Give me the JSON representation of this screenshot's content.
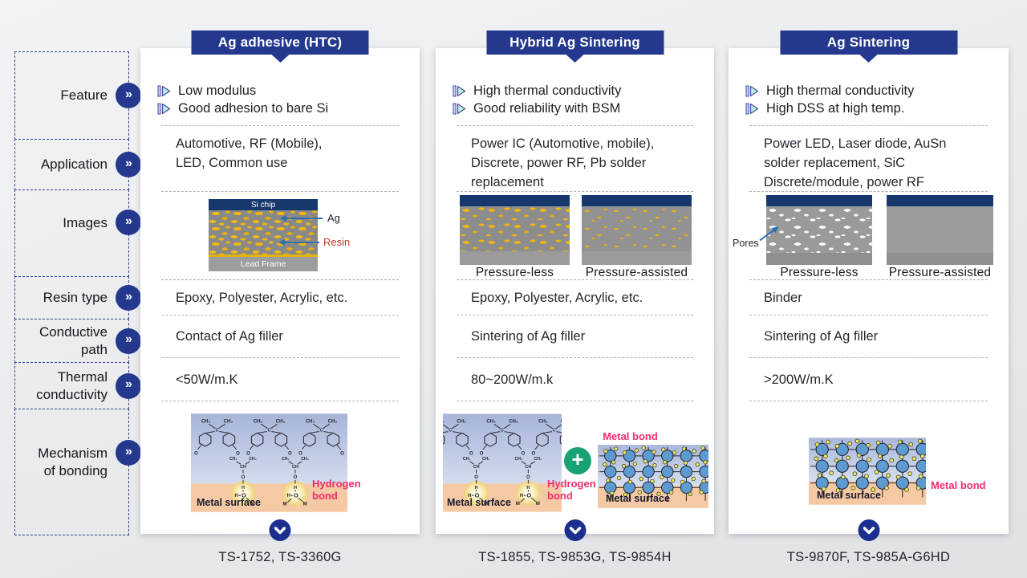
{
  "icons": {
    "chevron_right": "»",
    "plus": "+"
  },
  "sidebar": {
    "rows": [
      {
        "label": "Feature"
      },
      {
        "label": "Application"
      },
      {
        "label": "Images"
      },
      {
        "label": "Resin type"
      },
      {
        "label": "Conductive\npath"
      },
      {
        "label": "Thermal\nconductivity"
      },
      {
        "label": "Mechanism\nof bonding"
      }
    ]
  },
  "columns": [
    {
      "title": "Ag adhesive (HTC)",
      "features": [
        "Low modulus",
        "Good adhesion to bare Si"
      ],
      "application": "Automotive, RF (Mobile),\nLED, Common use",
      "images": {
        "si_chip": "Si chip",
        "lead_frame": "Lead Frame",
        "ag_label": "Ag",
        "resin_label": "Resin"
      },
      "resin_type": "Epoxy, Polyester, Acrylic, etc.",
      "conductive_path": "Contact of Ag filler",
      "thermal_conductivity": "<50W/m.K",
      "mechanism": {
        "metal_surface": "Metal surface",
        "hydrogen_bond": "Hydrogen\nbond"
      },
      "products": "TS-1752, TS-3360G"
    },
    {
      "title": "Hybrid Ag Sintering",
      "features": [
        "High thermal conductivity",
        "Good reliability with BSM"
      ],
      "application": "Power IC (Automotive, mobile),\nDiscrete,  power RF, Pb solder\nreplacement",
      "images": {
        "captions": [
          "Pressure-less",
          "Pressure-assisted"
        ]
      },
      "resin_type": "Epoxy, Polyester, Acrylic, etc.",
      "conductive_path": "Sintering of Ag filler",
      "thermal_conductivity": "80~200W/m.k",
      "mechanism": {
        "metal_surface": "Metal surface",
        "hydrogen_bond": "Hydrogen\nbond",
        "metal_bond": "Metal bond",
        "metal_surface2": "Metal surface"
      },
      "products": "TS-1855, TS-9853G, TS-9854H"
    },
    {
      "title": "Ag Sintering",
      "features": [
        "High thermal conductivity",
        "High DSS at high temp."
      ],
      "application": "Power LED, Laser diode, AuSn\nsolder replacement, SiC\nDiscrete/module, power RF",
      "images": {
        "captions": [
          "Pressure-less",
          "Pressure-assisted"
        ],
        "pores": "Pores"
      },
      "resin_type": "Binder",
      "conductive_path": "Sintering of Ag filler",
      "thermal_conductivity": ">200W/m.K",
      "mechanism": {
        "metal_surface": "Metal surface",
        "metal_bond": "Metal bond"
      },
      "products": "TS-9870F, TS-985A-G6HD"
    }
  ],
  "molecule": {
    "ch3": "CH₃",
    "ch2": "CH₂",
    "ch": "CH",
    "c": "C",
    "o": "O",
    "h": "H",
    "m": "M"
  },
  "colors": {
    "navy": "#24398e",
    "pink": "#ee2d6c",
    "yellow": "#f1b50b",
    "peach": "#f5c9a3",
    "green_plus": "#17a274",
    "lattice_blue": "#5d9ad2",
    "si_bar": "#16386d"
  }
}
